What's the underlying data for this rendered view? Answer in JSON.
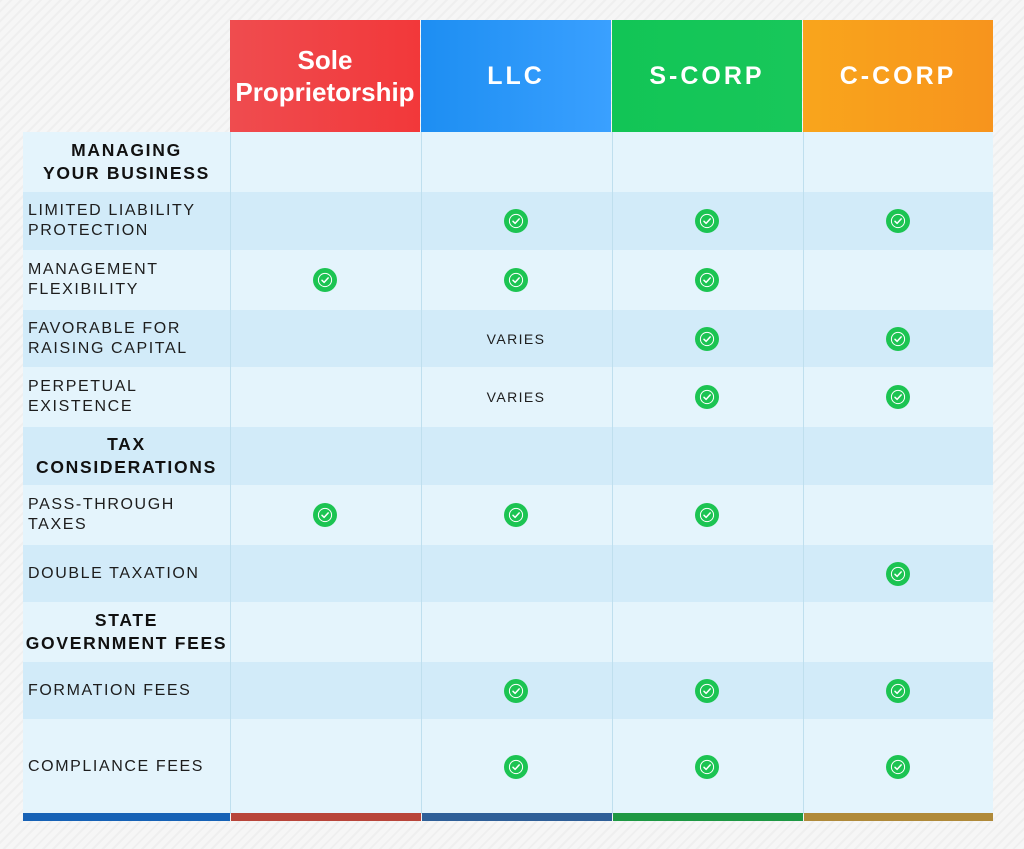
{
  "columns": [
    "Sole Proprietorship",
    "LLC",
    "S-CORP",
    "C-CORP"
  ],
  "colors": {
    "sole": "#f2383a",
    "llc": "#2f9bfc",
    "scorp": "#14c556",
    "ccorp": "#f99d1c",
    "check": "#1cc452"
  },
  "rows": [
    {
      "type": "section",
      "label_lines": [
        "MANAGING",
        "YOUR BUSINESS"
      ]
    },
    {
      "type": "item",
      "label_lines": [
        "LIMITED LIABILITY",
        "PROTECTION"
      ],
      "values": [
        "",
        "check",
        "check",
        "check"
      ]
    },
    {
      "type": "item",
      "label_lines": [
        "MANAGEMENT",
        "FLEXIBILITY"
      ],
      "values": [
        "check",
        "check",
        "check",
        ""
      ]
    },
    {
      "type": "item",
      "label_lines": [
        "FAVORABLE FOR",
        "RAISING CAPITAL"
      ],
      "values": [
        "",
        "VARIES",
        "check",
        "check"
      ]
    },
    {
      "type": "item",
      "label_lines": [
        "PERPETUAL",
        "EXISTENCE"
      ],
      "values": [
        "",
        "VARIES",
        "check",
        "check"
      ]
    },
    {
      "type": "section",
      "label_lines": [
        "TAX",
        "CONSIDERATIONS"
      ]
    },
    {
      "type": "item",
      "label_lines": [
        "PASS-THROUGH",
        "TAXES"
      ],
      "values": [
        "check",
        "check",
        "check",
        ""
      ]
    },
    {
      "type": "item",
      "label_lines": [
        "DOUBLE TAXATION"
      ],
      "values": [
        "",
        "",
        "",
        "check"
      ]
    },
    {
      "type": "section",
      "label_lines": [
        "STATE",
        "GOVERNMENT FEES"
      ]
    },
    {
      "type": "item",
      "label_lines": [
        "FORMATION FEES"
      ],
      "values": [
        "",
        "check",
        "check",
        "check"
      ]
    },
    {
      "type": "item",
      "label_lines": [
        "COMPLIANCE FEES"
      ],
      "values": [
        "",
        "check",
        "check",
        "check"
      ]
    }
  ]
}
